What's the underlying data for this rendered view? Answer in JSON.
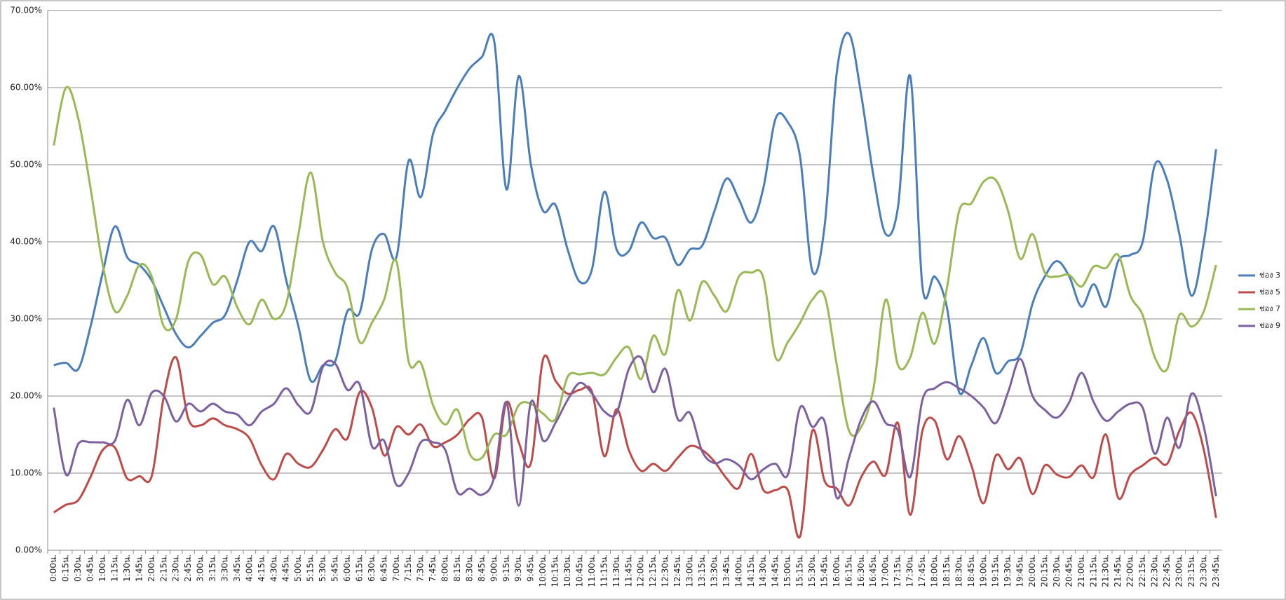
{
  "chart_data": {
    "type": "line",
    "categories": [
      "0:00น.",
      "0:15น.",
      "0:30น.",
      "0:45น.",
      "1:00น.",
      "1:15น.",
      "1:30น.",
      "1:45น.",
      "2:00น.",
      "2:15น.",
      "2:30น.",
      "2:45น.",
      "3:00น.",
      "3:15น.",
      "3:30น.",
      "3:45น.",
      "4:00น.",
      "4:15น.",
      "4:30น.",
      "4:45น.",
      "5:00น.",
      "5:15น.",
      "5:30น.",
      "5:45น.",
      "6:00น.",
      "6:15น.",
      "6:30น.",
      "6:45น.",
      "7:00น.",
      "7:15น.",
      "7:30น.",
      "7:45น.",
      "8:00น.",
      "8:15น.",
      "8:30น.",
      "8:45น.",
      "9:00น.",
      "9:15น.",
      "9:30น.",
      "9:45น.",
      "10:00น.",
      "10:15น.",
      "10:30น.",
      "10:45น.",
      "11:00น.",
      "11:15น.",
      "11:30น.",
      "11:45น.",
      "12:00น.",
      "12:15น.",
      "12:30น.",
      "12:45น.",
      "13:00น.",
      "13:15น.",
      "13:30น.",
      "13:45น.",
      "14:00น.",
      "14:15น.",
      "14:30น.",
      "14:45น.",
      "15:00น.",
      "15:15น.",
      "15:30น.",
      "15:45น.",
      "16:00น.",
      "16:15น.",
      "16:30น.",
      "16:45น.",
      "17:00น.",
      "17:15น.",
      "17:30น.",
      "17:45น.",
      "18:00น.",
      "18:15น.",
      "18:30น.",
      "18:45น.",
      "19:00น.",
      "19:15น.",
      "19:30น.",
      "19:45น.",
      "20:00น.",
      "20:15น.",
      "20:30น.",
      "20:45น.",
      "21:00น.",
      "21:15น.",
      "21:30น.",
      "21:45น.",
      "22:00น.",
      "22:15น.",
      "22:30น.",
      "22:45น.",
      "23:00น.",
      "23:15น.",
      "23:30น.",
      "23:45น."
    ],
    "series": [
      {
        "name": "ช่อง 3",
        "color": "#4a7ebb",
        "values": [
          24.0,
          24.3,
          23.5,
          29,
          36,
          42,
          38,
          37,
          35,
          31.5,
          28,
          26.3,
          27.8,
          29.5,
          30.5,
          35,
          40,
          38.8,
          42,
          35,
          29,
          22,
          24,
          24.5,
          31,
          30.8,
          39,
          41,
          38,
          50.5,
          45.8,
          54,
          57,
          60,
          62.5,
          64,
          66,
          46.8,
          61.5,
          50,
          44,
          44.8,
          39,
          34.8,
          36.5,
          46.5,
          39,
          38.8,
          42.5,
          40.5,
          40.5,
          37,
          39,
          39.5,
          44,
          48.2,
          45.5,
          42.5,
          47,
          56,
          55.5,
          51,
          36.2,
          42,
          62,
          67,
          59,
          48.5,
          41,
          44.5,
          61.5,
          34.2,
          35.5,
          31.5,
          20.5,
          24,
          27.5,
          23,
          24.5,
          25.5,
          32,
          35.5,
          37.5,
          35.5,
          31.6,
          34.5,
          31.6,
          37.5,
          38.3,
          40,
          50,
          48,
          41,
          33,
          40,
          52
        ]
      },
      {
        "name": "ช่อง 5",
        "color": "#be4b48",
        "values": [
          4.9,
          5.9,
          6.5,
          9.5,
          13,
          13.3,
          9.3,
          9.6,
          9.6,
          20,
          25,
          17,
          16.2,
          17.1,
          16.2,
          15.7,
          14.5,
          11,
          9.2,
          12.5,
          11.2,
          10.8,
          13,
          15.7,
          14.5,
          20.5,
          18.5,
          12.3,
          16,
          15,
          16.3,
          13.5,
          14,
          15,
          17,
          17.2,
          9.3,
          19.2,
          14,
          11.3,
          24.8,
          22,
          20.3,
          20.8,
          20.5,
          12.2,
          18.3,
          13,
          10.3,
          11.2,
          10.3,
          12,
          13.5,
          13,
          11.5,
          9.3,
          8.1,
          12.5,
          7.8,
          7.8,
          7.8,
          1.8,
          15.5,
          9,
          8,
          5.8,
          9.5,
          11.5,
          9.8,
          16.5,
          4.6,
          15.5,
          16.8,
          11.8,
          14.8,
          11,
          6.1,
          12.3,
          10.5,
          11.9,
          7.3,
          11,
          9.8,
          9.5,
          11,
          9.5,
          15,
          6.8,
          9.8,
          11,
          12,
          11.2,
          15.5,
          17.8,
          13,
          4.2
        ]
      },
      {
        "name": "ช่อง 7",
        "color": "#98b954",
        "values": [
          52.5,
          60,
          56,
          47,
          37,
          31,
          33,
          37,
          35.5,
          29,
          30,
          37.5,
          38.3,
          34.5,
          35.5,
          31.5,
          29.3,
          32.5,
          30,
          32,
          41,
          49,
          40,
          36,
          34,
          27,
          29.5,
          32.5,
          37.5,
          24.5,
          24.3,
          18.8,
          16.3,
          18.2,
          12.5,
          12,
          15,
          15,
          18.8,
          19,
          17.7,
          17,
          22.5,
          22.8,
          23,
          22.8,
          25,
          26.3,
          22.2,
          27.8,
          25.5,
          33.7,
          29.8,
          34.8,
          33,
          31,
          35.5,
          36,
          35.3,
          25,
          27,
          29.5,
          32.5,
          33,
          24,
          15.5,
          16,
          21,
          32.5,
          24,
          25,
          30.8,
          26.8,
          34,
          44,
          45,
          47.8,
          48,
          44,
          37.8,
          41,
          36,
          35.5,
          35.7,
          34.2,
          36.8,
          36.6,
          38.3,
          33,
          30.5,
          25,
          23.5,
          30.5,
          29,
          31,
          37
        ]
      },
      {
        "name": "ช่อง 9",
        "color": "#7d60a0",
        "values": [
          18.5,
          9.8,
          13.8,
          14,
          14,
          14.2,
          19.5,
          16.2,
          20.4,
          20,
          16.7,
          19,
          18,
          19,
          18,
          17.6,
          16.2,
          18,
          19,
          21,
          18.8,
          18,
          23.8,
          24.2,
          20.8,
          21.5,
          13.5,
          14.2,
          8.5,
          10,
          14,
          14,
          13,
          7.5,
          8,
          7.2,
          9.5,
          19.2,
          5.8,
          19.2,
          14.2,
          16.5,
          19.5,
          21.7,
          20.3,
          18,
          17.8,
          23.5,
          25,
          20.5,
          23.5,
          17,
          17.8,
          12.8,
          11.3,
          11.8,
          11,
          9.2,
          10.5,
          11.2,
          9.8,
          18.5,
          16,
          16.7,
          6.8,
          12,
          17,
          19.3,
          16.5,
          15.5,
          9.5,
          19.5,
          21,
          21.8,
          21,
          20,
          18.5,
          16.5,
          20.5,
          24.8,
          20,
          18.2,
          17.2,
          19.2,
          23,
          19.2,
          16.8,
          18,
          19,
          18.5,
          12.5,
          17.2,
          13.3,
          20.3,
          16,
          7
        ]
      }
    ],
    "ylim": [
      0,
      70
    ],
    "yticks": [
      {
        "value": 0,
        "label": "0.00%"
      },
      {
        "value": 10,
        "label": "10.00%"
      },
      {
        "value": 20,
        "label": "20.00%"
      },
      {
        "value": 30,
        "label": "30.00%"
      },
      {
        "value": 40,
        "label": "40.00%"
      },
      {
        "value": 50,
        "label": "50.00%"
      },
      {
        "value": 60,
        "label": "60.00%"
      },
      {
        "value": 70,
        "label": "70.00%"
      }
    ],
    "grid": true,
    "legend": "right"
  }
}
